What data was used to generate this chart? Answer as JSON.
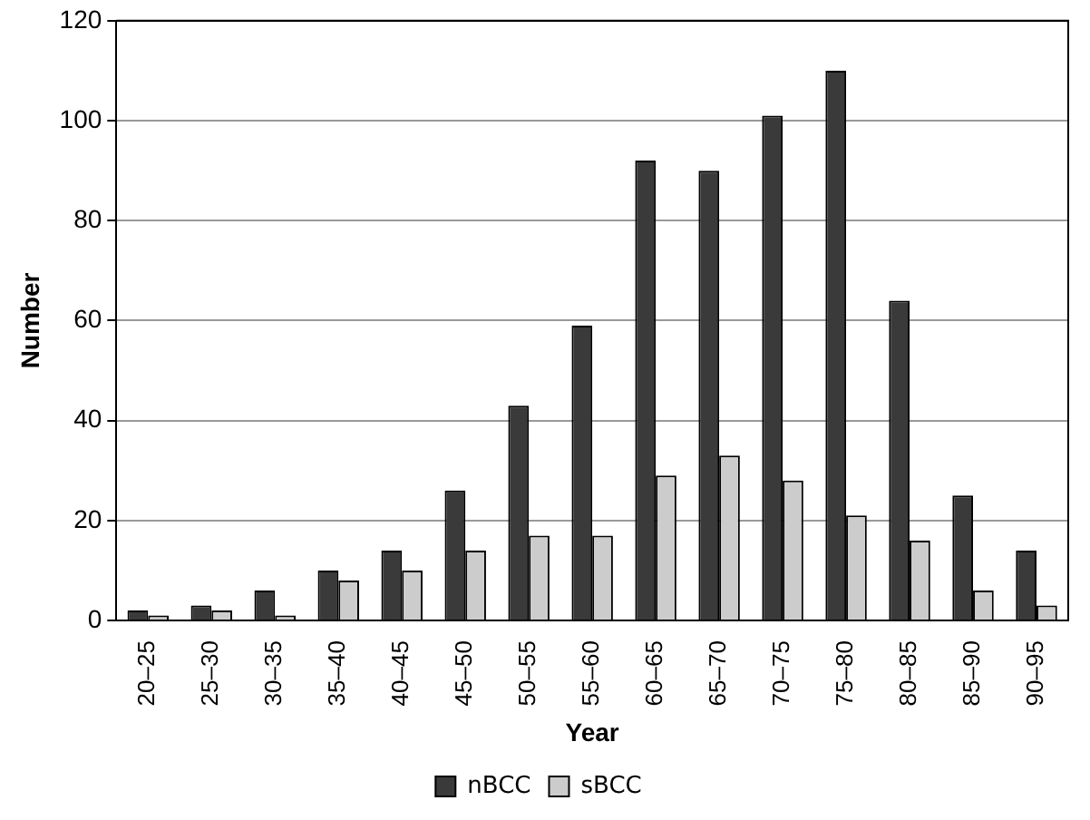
{
  "chart_data": {
    "type": "bar",
    "xlabel": "Year",
    "ylabel": "Number",
    "categories": [
      "20–25",
      "25–30",
      "30–35",
      "35–40",
      "40–45",
      "45–50",
      "50–55",
      "55–60",
      "60–65",
      "65–70",
      "70–75",
      "75–80",
      "80–85",
      "85–90",
      "90–95"
    ],
    "series": [
      {
        "name": "nBCC",
        "color": "#3a3a3a",
        "values": [
          2,
          3,
          6,
          10,
          14,
          26,
          43,
          59,
          92,
          90,
          101,
          110,
          64,
          25,
          14
        ]
      },
      {
        "name": "sBCC",
        "color": "#cccccc",
        "values": [
          1,
          2,
          1,
          8,
          10,
          14,
          17,
          17,
          29,
          33,
          28,
          21,
          16,
          6,
          3
        ]
      }
    ],
    "ylim": [
      0,
      120
    ],
    "yticks": [
      0,
      20,
      40,
      60,
      80,
      100,
      120
    ],
    "grid": "y",
    "legend": "bottom"
  }
}
